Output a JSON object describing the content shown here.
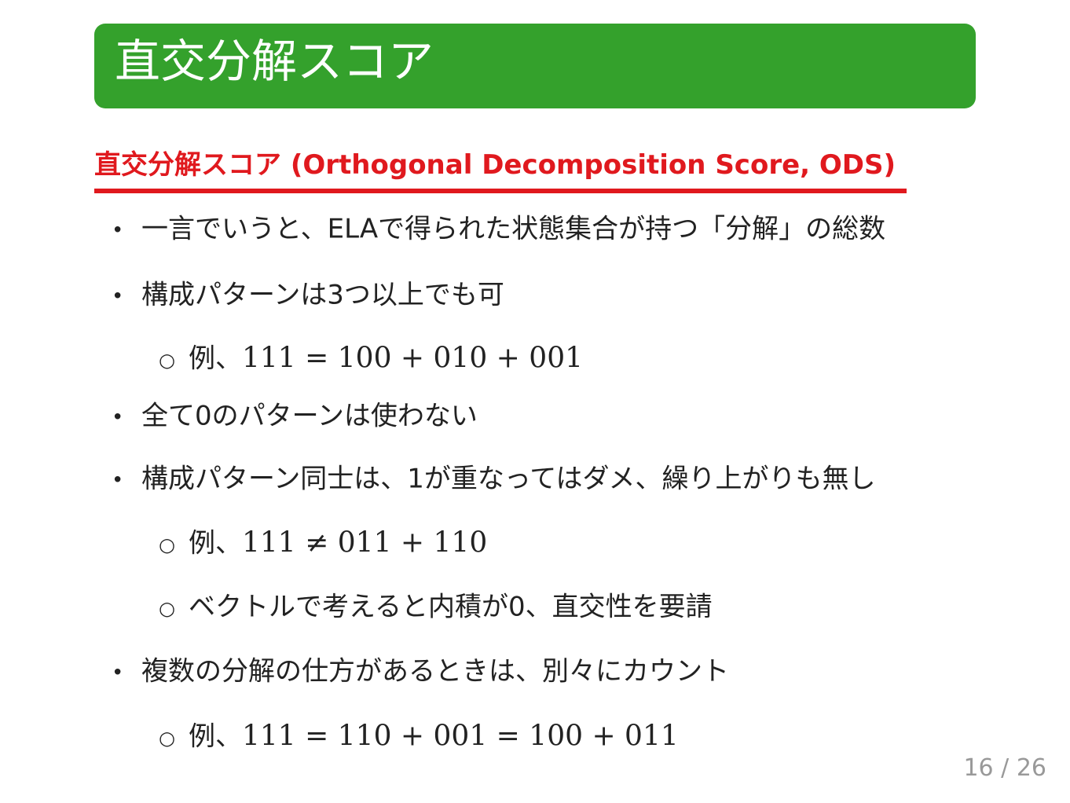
{
  "header": {
    "title": "直交分解スコア",
    "color": "#34a12c"
  },
  "section": {
    "title": "直交分解スコア (Orthogonal Decomposition Score, ODS)",
    "color": "#e0191e"
  },
  "items": [
    {
      "level": 1,
      "text": "一言でいうと、ELAで得られた状態集合が持つ「分解」の総数"
    },
    {
      "level": 1,
      "text": "構成パターンは3つ以上でも可"
    },
    {
      "level": 2,
      "text": "例、",
      "math": "111 = 100 + 010 + 001"
    },
    {
      "level": 1,
      "text": "全て0のパターンは使わない"
    },
    {
      "level": 1,
      "text": "構成パターン同士は、1が重なってはダメ、繰り上がりも無し"
    },
    {
      "level": 2,
      "text": "例、",
      "math": "111 ≠ 011 + 110"
    },
    {
      "level": 2,
      "text": "ベクトルで考えると内積が0、直交性を要請"
    },
    {
      "level": 1,
      "text": "複数の分解の仕方があるときは、別々にカウント"
    },
    {
      "level": 2,
      "text": "例、",
      "math": "111 = 110 + 001 = 100 + 011"
    }
  ],
  "bullets": {
    "level1": "•",
    "level2": "○"
  },
  "pager": "16 / 26"
}
